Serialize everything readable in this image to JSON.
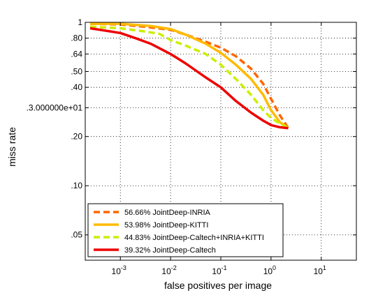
{
  "chart_data": {
    "type": "line",
    "xlabel": "false positives per image",
    "ylabel": "miss rate",
    "x_scale": "log",
    "y_scale": "log",
    "xlim": [
      0.0002,
      50
    ],
    "ylim": [
      0.035,
      1
    ],
    "x_ticks": [
      {
        "value": 0.001,
        "base": "10",
        "exp": "-3"
      },
      {
        "value": 0.01,
        "base": "10",
        "exp": "-2"
      },
      {
        "value": 0.1,
        "base": "10",
        "exp": "-1"
      },
      {
        "value": 1,
        "base": "10",
        "exp": "0"
      },
      {
        "value": 10,
        "base": "10",
        "exp": "1"
      }
    ],
    "y_ticks": [
      {
        "value": 1,
        "label": "1"
      },
      {
        "value": 0.8,
        "label": ".80"
      },
      {
        "value": 0.64,
        "label": ".64"
      },
      {
        "value": 0.5,
        "label": ".50"
      },
      {
        "value": 0.4,
        "label": ".40"
      },
      {
        "value": 0.3,
        "label": ".3.000000e+01"
      },
      {
        "value": 0.2,
        "label": ".20"
      },
      {
        "value": 0.1,
        "label": ".10"
      },
      {
        "value": 0.05,
        "label": ".05"
      }
    ],
    "grid": true,
    "legend_position": "bottom-left",
    "series": [
      {
        "name": "56.66% JointDeep-INRIA",
        "color": "#ff6600",
        "dash": true,
        "x": [
          0.00025,
          0.001,
          0.003,
          0.01,
          0.02,
          0.05,
          0.1,
          0.2,
          0.4,
          0.7,
          1.0,
          1.5,
          2.2
        ],
        "y": [
          0.98,
          0.97,
          0.94,
          0.9,
          0.84,
          0.76,
          0.7,
          0.62,
          0.52,
          0.42,
          0.34,
          0.27,
          0.225
        ]
      },
      {
        "name": "53.98% JointDeep-KITTI",
        "color": "#ffbb00",
        "dash": false,
        "x": [
          0.00025,
          0.001,
          0.004,
          0.01,
          0.02,
          0.05,
          0.1,
          0.2,
          0.4,
          0.7,
          1.0,
          1.5,
          2.2
        ],
        "y": [
          0.98,
          0.98,
          0.95,
          0.91,
          0.84,
          0.74,
          0.65,
          0.55,
          0.45,
          0.36,
          0.29,
          0.245,
          0.225
        ]
      },
      {
        "name": "44.83% JointDeep-Caltech+INRIA+KITTI",
        "color": "#ccee00",
        "dash": true,
        "x": [
          0.00025,
          0.001,
          0.003,
          0.006,
          0.01,
          0.02,
          0.05,
          0.1,
          0.2,
          0.4,
          0.7,
          1.0,
          1.5,
          2.2
        ],
        "y": [
          0.94,
          0.92,
          0.88,
          0.85,
          0.78,
          0.72,
          0.64,
          0.55,
          0.45,
          0.36,
          0.29,
          0.26,
          0.24,
          0.225
        ]
      },
      {
        "name": "39.32% JointDeep-Caltech",
        "color": "#ee0000",
        "dash": false,
        "x": [
          0.00025,
          0.001,
          0.002,
          0.004,
          0.01,
          0.02,
          0.05,
          0.1,
          0.2,
          0.4,
          0.7,
          1.0,
          1.5,
          2.2
        ],
        "y": [
          0.92,
          0.86,
          0.8,
          0.74,
          0.64,
          0.56,
          0.46,
          0.4,
          0.33,
          0.28,
          0.25,
          0.235,
          0.228,
          0.225
        ]
      }
    ]
  }
}
